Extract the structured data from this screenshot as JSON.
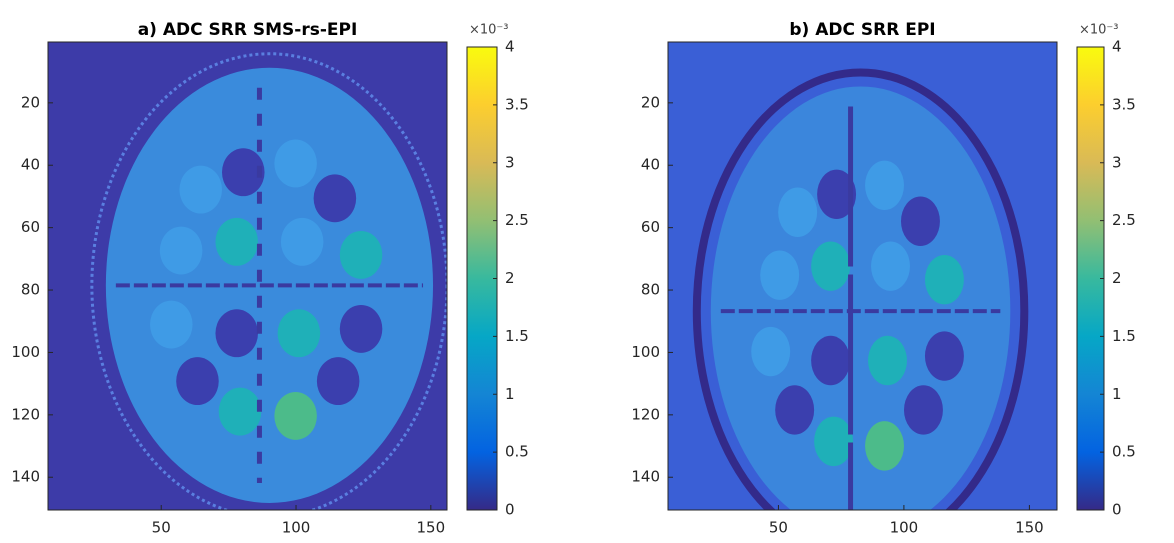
{
  "chart_data": [
    {
      "type": "image",
      "title": "a) ADC SRR SMS-rs-EPI",
      "xlim": [
        8,
        156
      ],
      "xticks": [
        50,
        100,
        150
      ],
      "ylim": [
        0.5,
        150.5
      ],
      "yticks": [
        20,
        40,
        60,
        80,
        100,
        120,
        140
      ],
      "y_reversed": true,
      "colorbar": {
        "clim": [
          0,
          4
        ],
        "ticks": [
          0,
          0.5,
          1,
          1.5,
          2,
          2.5,
          3,
          3.5,
          4
        ],
        "exponent_label": "×10⁻³",
        "colormap": [
          "#352a87",
          "#0363e1",
          "#1485d4",
          "#06a7c6",
          "#38b99e",
          "#92bf73",
          "#d9ba56",
          "#fcce2e",
          "#f9fb0e"
        ]
      }
    },
    {
      "type": "image",
      "title": "b) ADC SRR EPI",
      "xlim": [
        6,
        161
      ],
      "xticks": [
        50,
        100,
        150
      ],
      "ylim": [
        0.5,
        150.5
      ],
      "yticks": [
        20,
        40,
        60,
        80,
        100,
        120,
        140
      ],
      "y_reversed": true,
      "colorbar": {
        "clim": [
          0,
          4
        ],
        "ticks": [
          0,
          0.5,
          1,
          1.5,
          2,
          2.5,
          3,
          3.5,
          4
        ],
        "exponent_label": "×10⁻³",
        "colormap": [
          "#352a87",
          "#0363e1",
          "#1485d4",
          "#06a7c6",
          "#38b99e",
          "#92bf73",
          "#d9ba56",
          "#fcce2e",
          "#f9fb0e"
        ]
      }
    }
  ]
}
